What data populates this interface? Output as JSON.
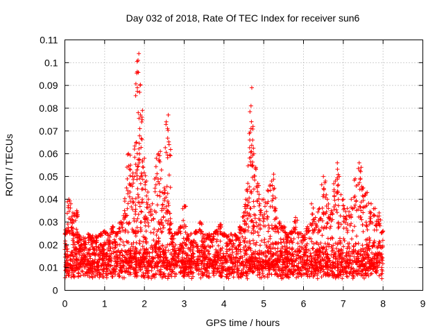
{
  "chart_data": {
    "type": "scatter",
    "title": "Day 032 of 2018, Rate Of TEC Index for receiver sun6",
    "xlabel": "GPS time / hours",
    "ylabel": "ROTI / TECUs",
    "xlim": [
      0,
      9
    ],
    "ylim": [
      0,
      0.11
    ],
    "x_ticks": [
      "0",
      "1",
      "2",
      "3",
      "4",
      "5",
      "6",
      "7",
      "8",
      "9"
    ],
    "y_ticks": [
      "0",
      "0.01",
      "0.02",
      "0.03",
      "0.04",
      "0.05",
      "0.06",
      "0.07",
      "0.08",
      "0.09",
      "0.1",
      "0.11"
    ],
    "grid": true,
    "marker": "plus",
    "series": [
      {
        "name": "ROTI",
        "color": "#ff0000",
        "x": [
          0.0,
          0.05,
          0.1,
          0.15,
          0.2,
          0.25,
          0.3,
          0.35,
          0.4,
          0.5,
          0.6,
          0.7,
          0.8,
          0.9,
          1.0,
          1.1,
          1.2,
          1.3,
          1.4,
          1.5,
          1.55,
          1.6,
          1.65,
          1.7,
          1.75,
          1.8,
          1.82,
          1.84,
          1.86,
          1.88,
          1.9,
          1.95,
          2.0,
          2.05,
          2.1,
          2.2,
          2.3,
          2.35,
          2.4,
          2.45,
          2.5,
          2.55,
          2.6,
          2.62,
          2.65,
          2.7,
          2.8,
          2.9,
          3.0,
          3.1,
          3.2,
          3.3,
          3.4,
          3.5,
          3.6,
          3.7,
          3.8,
          3.9,
          4.0,
          4.1,
          4.2,
          4.3,
          4.4,
          4.5,
          4.55,
          4.6,
          4.65,
          4.68,
          4.7,
          4.72,
          4.75,
          4.8,
          4.85,
          4.9,
          5.0,
          5.1,
          5.2,
          5.25,
          5.3,
          5.4,
          5.5,
          5.6,
          5.7,
          5.8,
          5.9,
          6.0,
          6.1,
          6.2,
          6.3,
          6.4,
          6.5,
          6.55,
          6.6,
          6.7,
          6.8,
          6.85,
          6.9,
          7.0,
          7.1,
          7.2,
          7.3,
          7.4,
          7.45,
          7.5,
          7.6,
          7.7,
          7.8,
          7.9,
          8.0
        ],
        "y": [
          0.018,
          0.027,
          0.04,
          0.038,
          0.034,
          0.024,
          0.035,
          0.021,
          0.017,
          0.02,
          0.022,
          0.019,
          0.021,
          0.024,
          0.026,
          0.02,
          0.028,
          0.025,
          0.03,
          0.035,
          0.045,
          0.06,
          0.055,
          0.05,
          0.062,
          0.065,
          0.096,
          0.101,
          0.104,
          0.087,
          0.077,
          0.079,
          0.058,
          0.048,
          0.04,
          0.038,
          0.058,
          0.06,
          0.061,
          0.043,
          0.045,
          0.074,
          0.077,
          0.064,
          0.03,
          0.02,
          0.025,
          0.028,
          0.037,
          0.022,
          0.018,
          0.026,
          0.03,
          0.019,
          0.023,
          0.021,
          0.026,
          0.029,
          0.024,
          0.02,
          0.018,
          0.022,
          0.028,
          0.034,
          0.04,
          0.047,
          0.066,
          0.081,
          0.089,
          0.066,
          0.06,
          0.054,
          0.047,
          0.038,
          0.04,
          0.044,
          0.048,
          0.051,
          0.036,
          0.03,
          0.028,
          0.022,
          0.026,
          0.032,
          0.025,
          0.022,
          0.028,
          0.038,
          0.032,
          0.036,
          0.05,
          0.048,
          0.04,
          0.035,
          0.048,
          0.056,
          0.05,
          0.04,
          0.036,
          0.04,
          0.049,
          0.056,
          0.054,
          0.045,
          0.043,
          0.038,
          0.036,
          0.034,
          0.026
        ],
        "baseline_band": [
          0.005,
          0.025
        ]
      }
    ]
  }
}
